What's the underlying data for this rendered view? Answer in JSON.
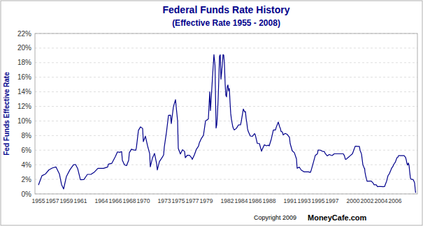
{
  "chart_data": {
    "type": "line",
    "title": "Federal Funds Rate History",
    "subtitle": "(Effective Rate 1955 - 2008)",
    "y_label": "Fed Funds Effective Rate",
    "annotations": [
      "Copyright 2009",
      "MoneyCafe.com"
    ],
    "color": "#00008B",
    "grid": true,
    "xlim": [
      1954.5,
      2009.2
    ],
    "ylim": [
      0,
      22
    ],
    "xticks": [
      1955,
      1957,
      1959,
      1961,
      1964,
      1966,
      1968,
      1970,
      1973,
      1975,
      1977,
      1979,
      1982,
      1984,
      1986,
      1988,
      1991,
      1993,
      1995,
      1997,
      2000,
      2002,
      2004,
      2006
    ],
    "yticks": [
      {
        "value": 0,
        "label": "0%"
      },
      {
        "value": 2,
        "label": "2%"
      },
      {
        "value": 4,
        "label": "4%"
      },
      {
        "value": 6,
        "label": "6%"
      },
      {
        "value": 8,
        "label": "8%"
      },
      {
        "value": 10,
        "label": "10%"
      },
      {
        "value": 12,
        "label": "12%"
      },
      {
        "value": 14,
        "label": "14%"
      },
      {
        "value": 16,
        "label": "16%"
      },
      {
        "value": 18,
        "label": "18%"
      },
      {
        "value": 20,
        "label": "20%"
      },
      {
        "value": 22,
        "label": "22%"
      }
    ],
    "x": [
      1955,
      1955.5,
      1956,
      1956.5,
      1957,
      1957.5,
      1958,
      1958.3,
      1958.6,
      1959,
      1959.5,
      1960,
      1960.3,
      1960.6,
      1960.9,
      1961,
      1961.5,
      1962,
      1962.5,
      1963,
      1963.5,
      1964,
      1964.3,
      1964.6,
      1964.9,
      1965,
      1965.5,
      1966,
      1966.3,
      1966.6,
      1966.9,
      1967,
      1967.3,
      1967.6,
      1967.9,
      1968,
      1968.3,
      1968.6,
      1968.9,
      1969,
      1969.3,
      1969.6,
      1969.9,
      1970,
      1970.3,
      1970.6,
      1970.9,
      1971,
      1971.3,
      1971.6,
      1971.9,
      1972,
      1972.3,
      1972.6,
      1972.9,
      1973,
      1973.3,
      1973.6,
      1973.9,
      1974,
      1974.3,
      1974.6,
      1974.9,
      1975,
      1975.3,
      1975.6,
      1975.9,
      1976,
      1976.3,
      1976.6,
      1976.9,
      1977,
      1977.3,
      1977.6,
      1977.9,
      1978,
      1978.3,
      1978.6,
      1978.9,
      1979,
      1979.3,
      1979.5,
      1979.6,
      1979.75,
      1980,
      1980.1,
      1980.25,
      1980.4,
      1980.5,
      1980.6,
      1980.7,
      1980.8,
      1980.9,
      1981,
      1981.1,
      1981.2,
      1981.3,
      1981.4,
      1981.5,
      1981.6,
      1981.7,
      1981.8,
      1981.9,
      1982,
      1982.1,
      1982.2,
      1982.3,
      1982.4,
      1982.5,
      1982.6,
      1982.7,
      1982.8,
      1982.9,
      1983,
      1983.3,
      1983.6,
      1983.9,
      1984,
      1984.3,
      1984.5,
      1984.6,
      1984.7,
      1984.8,
      1984.9,
      1985,
      1985.3,
      1985.6,
      1985.9,
      1986,
      1986.3,
      1986.6,
      1986.9,
      1987,
      1987.3,
      1987.6,
      1987.9,
      1988,
      1988.3,
      1988.6,
      1988.9,
      1989,
      1989.3,
      1989.5,
      1989.6,
      1989.7,
      1989.8,
      1989.9,
      1990,
      1990.3,
      1990.6,
      1990.9,
      1991,
      1991.3,
      1991.6,
      1991.9,
      1992,
      1992.3,
      1992.6,
      1992.9,
      1993,
      1993.3,
      1993.6,
      1993.9,
      1994,
      1994.3,
      1994.6,
      1994.9,
      1995,
      1995.3,
      1995.6,
      1995.9,
      1996,
      1996.3,
      1996.6,
      1996.9,
      1997,
      1997.3,
      1997.6,
      1997.9,
      1998,
      1998.3,
      1998.6,
      1998.75,
      1998.9,
      1999,
      1999.3,
      1999.6,
      1999.9,
      2000,
      2000.1,
      2000.2,
      2000.3,
      2000.4,
      2000.5,
      2000.6,
      2000.7,
      2000.8,
      2000.9,
      2001,
      2001.2,
      2001.3,
      2001.4,
      2001.5,
      2001.6,
      2001.65,
      2001.7,
      2001.8,
      2001.9,
      2002,
      2002.3,
      2002.6,
      2002.9,
      2003,
      2003.3,
      2003.5,
      2003.6,
      2003.9,
      2004,
      2004.3,
      2004.5,
      2004.6,
      2004.7,
      2004.8,
      2004.9,
      2005,
      2005.2,
      2005.3,
      2005.4,
      2005.5,
      2005.6,
      2005.7,
      2005.8,
      2005.9,
      2006,
      2006.1,
      2006.2,
      2006.3,
      2006.4,
      2006.5,
      2006.6,
      2006.7,
      2006.8,
      2006.9,
      2007,
      2007.3,
      2007.5,
      2007.6,
      2007.7,
      2007.8,
      2007.9,
      2008,
      2008.1,
      2008.2,
      2008.3,
      2008.4,
      2008.5,
      2008.6,
      2008.7,
      2008.8,
      2008.9,
      2008.95
    ],
    "values": [
      1.22,
      2.5,
      2.73,
      3.3,
      3.56,
      3.7,
      2.73,
      1.3,
      0.68,
      2.4,
      3.31,
      3.98,
      4.04,
      3.5,
      2.35,
      1.95,
      1.97,
      2.68,
      2.68,
      3.0,
      3.5,
      3.5,
      3.5,
      3.6,
      3.7,
      4.07,
      4.2,
      5.11,
      5.76,
      5.7,
      5.8,
      4.61,
      4.0,
      3.88,
      4.61,
      5.66,
      6.13,
      6.03,
      5.98,
      6.3,
      8.72,
      9.19,
      8.98,
      7.17,
      7.91,
      6.62,
      5.54,
      3.71,
      4.91,
      5.55,
      4.14,
      3.29,
      4.44,
      4.87,
      5.33,
      6.44,
      8.41,
      10.78,
      10.79,
      9.65,
      11.93,
      12.92,
      10.02,
      6.24,
      5.47,
      6.06,
      5.82,
      4.97,
      5.31,
      5.29,
      4.97,
      4.73,
      5.35,
      6.14,
      6.56,
      6.98,
      7.6,
      8.04,
      10.03,
      10.07,
      10.29,
      14.0,
      11.43,
      13.78,
      17.61,
      19.1,
      17.65,
      9.03,
      9.47,
      10.87,
      13.0,
      15.85,
      18.9,
      19.08,
      15.73,
      16.7,
      17.78,
      19.1,
      19.04,
      17.82,
      15.08,
      13.54,
      13.31,
      14.68,
      14.94,
      14.15,
      14.46,
      12.59,
      11.01,
      10.23,
      9.71,
      9.2,
      8.95,
      8.77,
      8.98,
      9.45,
      9.47,
      9.91,
      11.64,
      11.23,
      11.3,
      10.37,
      9.76,
      8.95,
      8.58,
      7.94,
      7.9,
      8.27,
      8.14,
      6.92,
      6.91,
      5.85,
      6.1,
      6.73,
      6.6,
      6.69,
      6.58,
      7.51,
      8.76,
      8.76,
      9.12,
      9.85,
      9.18,
      8.99,
      8.55,
      8.55,
      8.45,
      8.1,
      8.29,
      8.15,
      7.76,
      6.91,
      5.91,
      5.66,
      4.81,
      3.52,
      3.68,
      3.25,
      3.09,
      3.02,
      3.02,
      3.02,
      2.96,
      3.22,
      4.25,
      5.29,
      5.5,
      6.02,
      6.0,
      5.85,
      5.8,
      5.56,
      5.22,
      5.41,
      5.29,
      5.26,
      5.5,
      5.5,
      5.5,
      5.5,
      5.5,
      5.5,
      5.25,
      4.75,
      4.75,
      5.0,
      5.25,
      5.5,
      5.73,
      6.02,
      6.27,
      6.54,
      6.54,
      6.54,
      6.52,
      6.52,
      6.52,
      6.51,
      5.98,
      5.49,
      4.74,
      4.0,
      3.77,
      3.5,
      3.5,
      3.0,
      2.5,
      2.09,
      1.73,
      1.75,
      1.75,
      1.44,
      1.25,
      1.25,
      1.0,
      1.01,
      1.01,
      1.01,
      1.0,
      1.01,
      1.26,
      1.51,
      1.76,
      2.16,
      2.51,
      2.79,
      3.04,
      3.26,
      3.51,
      3.65,
      3.78,
      4.0,
      4.16,
      4.29,
      4.49,
      4.79,
      4.99,
      5.02,
      5.25,
      5.25,
      5.25,
      5.25,
      5.25,
      5.25,
      5.26,
      5.02,
      4.68,
      4.16,
      3.94,
      4.24,
      3.94,
      3.0,
      2.18,
      2.0,
      2.0,
      2.0,
      1.94,
      1.76,
      1.5,
      0.5,
      0.16
    ]
  }
}
